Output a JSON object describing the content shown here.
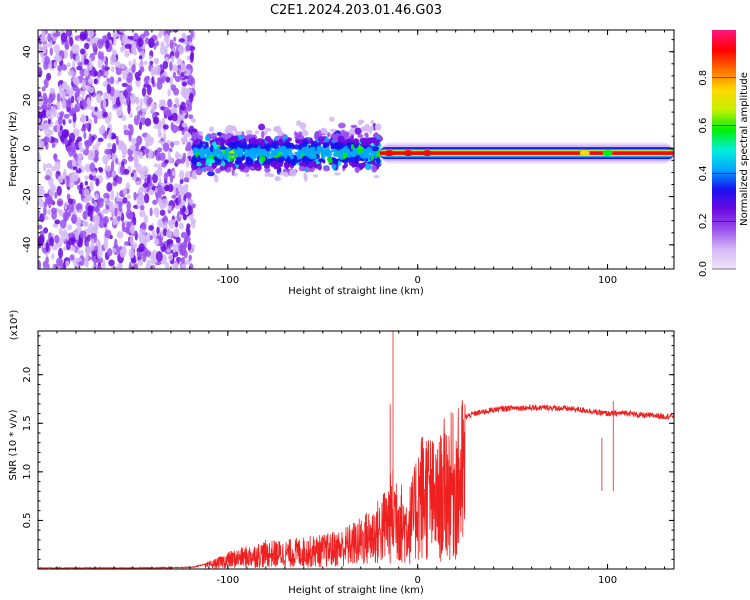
{
  "title": "C2E1.2024.203.01.46.G03",
  "colors": {
    "snr_line": "#ee2020",
    "colormap": [
      "#f0e4fa",
      "#d4b8f4",
      "#9a50f0",
      "#6a0ae0",
      "#1a10f0",
      "#00a8ff",
      "#00f0d8",
      "#00f000",
      "#c8f000",
      "#ffd800",
      "#ff7000",
      "#ff0000",
      "#ff1880"
    ]
  },
  "chart_data": [
    {
      "type": "heatmap",
      "title": "C2E1.2024.203.01.46.G03",
      "xlabel": "Height of straight line (km)",
      "ylabel": "Frequency (Hz)",
      "xlim": [
        -200,
        135
      ],
      "ylim": [
        -50,
        49
      ],
      "xticks": [
        -100,
        0,
        100
      ],
      "yticks": [
        -40,
        -20,
        0,
        20,
        40
      ],
      "colorbar": {
        "label": "Normalized spectral amplitude",
        "range": [
          0,
          1
        ],
        "ticks": [
          "0.0",
          "0.2",
          "0.4",
          "0.6",
          "0.8"
        ]
      },
      "regions": [
        {
          "name": "noise",
          "x": [
            -200,
            -118
          ],
          "freq_spread": [
            -50,
            49
          ],
          "amplitude": 0.1
        },
        {
          "name": "transition",
          "x": [
            -118,
            -20
          ],
          "center_freq": -2,
          "freq_spread": [
            -12,
            8
          ],
          "amplitude": 0.3
        },
        {
          "name": "tone",
          "x": [
            -20,
            135
          ],
          "center_freq": -2,
          "freq_width": 3,
          "amplitude": 0.95
        }
      ]
    },
    {
      "type": "line",
      "xlabel": "Height of straight line (km)",
      "ylabel": "SNR (10 * v/v)",
      "yscale_label": "(x10⁴)",
      "xlim": [
        -200,
        135
      ],
      "ylim": [
        0,
        2.45
      ],
      "xticks": [
        -100,
        0,
        100
      ],
      "yticks": [
        0.5,
        1.0,
        1.5,
        2.0
      ],
      "series": [
        {
          "x": [
            -200,
            -150,
            -125,
            -118,
            -112,
            -105,
            -100,
            -90,
            -80,
            -70,
            -60,
            -50,
            -40,
            -35,
            -30,
            -27,
            -24,
            -20,
            -17,
            -15,
            -12,
            -10,
            -8,
            -6,
            -4,
            -2,
            0,
            5,
            10,
            14,
            18,
            22,
            24,
            27,
            30,
            35,
            40,
            45,
            50,
            60,
            70,
            80,
            85,
            90,
            95,
            100,
            105,
            110,
            115,
            120,
            125,
            130,
            135
          ],
          "y": [
            0.01,
            0.01,
            0.015,
            0.02,
            0.05,
            0.1,
            0.15,
            0.2,
            0.25,
            0.25,
            0.28,
            0.3,
            0.35,
            0.4,
            0.45,
            0.5,
            0.55,
            0.62,
            0.72,
            0.8,
            0.95,
            0.9,
            0.7,
            0.7,
            0.75,
            0.85,
            1.15,
            1.25,
            1.05,
            1.3,
            1.35,
            1.4,
            1.55,
            1.58,
            1.6,
            1.62,
            1.64,
            1.65,
            1.66,
            1.66,
            1.66,
            1.65,
            1.64,
            1.63,
            1.61,
            1.6,
            1.6,
            1.61,
            1.59,
            1.58,
            1.58,
            1.57,
            1.58
          ]
        }
      ],
      "spikes": [
        {
          "x": -13,
          "y": 2.5
        },
        {
          "x": -14.5,
          "y": 1.7
        },
        {
          "x": 2,
          "y": 1.35
        },
        {
          "x": 103,
          "y": 1.73
        },
        {
          "x": 97,
          "y": 1.35
        }
      ]
    }
  ]
}
